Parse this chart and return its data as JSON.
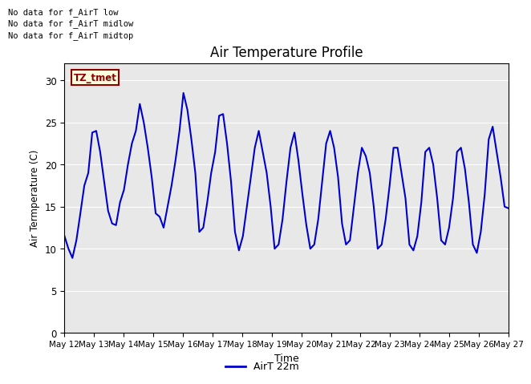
{
  "title": "Air Temperature Profile",
  "xlabel": "Time",
  "ylabel": "Air Termperature (C)",
  "legend_label": "AirT 22m",
  "ylim": [
    0,
    32
  ],
  "yticks": [
    0,
    5,
    10,
    15,
    20,
    25,
    30
  ],
  "line_color": "#0000cc",
  "bg_color": "#e8e8e8",
  "fig_bg_color": "#ffffff",
  "annotations": [
    "No data for f_AirT low",
    "No data for f_AirT midlow",
    "No data for f_AirT midtop"
  ],
  "tz_label": "TZ_tmet",
  "x_labels": [
    "May 12",
    "May 13",
    "May 14",
    "May 15",
    "May 16",
    "May 17",
    "May 18",
    "May 19",
    "May 20",
    "May 21",
    "May 22",
    "May 23",
    "May 24",
    "May 25",
    "May 26",
    "May 27"
  ],
  "x_values": [
    0,
    1,
    2,
    3,
    4,
    5,
    6,
    7,
    8,
    9,
    10,
    11,
    12,
    13,
    14,
    15
  ],
  "y_data": [
    11.5,
    10.0,
    8.9,
    11.0,
    14.2,
    17.5,
    19.0,
    23.8,
    24.0,
    21.5,
    18.0,
    14.5,
    13.0,
    12.8,
    15.5,
    17.0,
    20.0,
    22.5,
    24.0,
    27.2,
    25.0,
    22.0,
    18.5,
    14.2,
    13.8,
    12.5,
    15.0,
    17.5,
    20.5,
    24.0,
    28.5,
    26.5,
    23.0,
    19.0,
    12.0,
    12.5,
    15.5,
    19.0,
    21.5,
    25.8,
    26.0,
    22.5,
    18.0,
    12.0,
    9.8,
    11.5,
    15.0,
    18.5,
    22.0,
    24.0,
    21.5,
    19.0,
    15.0,
    10.0,
    10.5,
    13.5,
    18.0,
    22.0,
    23.8,
    20.5,
    16.5,
    12.8,
    10.0,
    10.5,
    13.5,
    18.0,
    22.5,
    24.0,
    22.0,
    18.5,
    13.0,
    10.5,
    11.0,
    15.0,
    19.0,
    22.0,
    21.0,
    19.0,
    15.0,
    10.0,
    10.5,
    13.5,
    17.5,
    22.0,
    22.0,
    19.0,
    16.0,
    10.5,
    9.8,
    11.5,
    15.5,
    21.5,
    22.0,
    20.0,
    16.0,
    11.0,
    10.5,
    12.5,
    16.0,
    21.5,
    22.0,
    19.5,
    15.5,
    10.5,
    9.5,
    12.0,
    16.5,
    23.0,
    24.5,
    21.5,
    18.5,
    15.0,
    14.8
  ]
}
